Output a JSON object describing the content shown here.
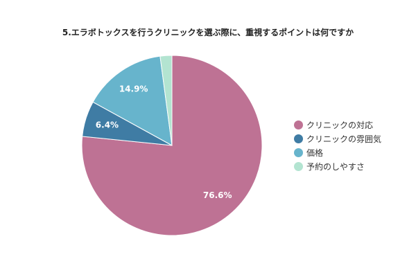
{
  "chart_data": {
    "type": "pie",
    "title": "5.エラボトックスを行うクリニックを選ぶ際に、重視するポイントは何ですか",
    "categories": [
      "クリニックの対応",
      "クリニックの雰囲気",
      "価格",
      "予約のしやすさ"
    ],
    "values": [
      76.6,
      6.4,
      14.9,
      2.1
    ],
    "data_labels": [
      "76.6%",
      "6.4%",
      "14.9%",
      ""
    ],
    "colors": [
      "#be7294",
      "#3f7ca4",
      "#67b4cc",
      "#b3e4d1"
    ],
    "legend_position": "right"
  }
}
